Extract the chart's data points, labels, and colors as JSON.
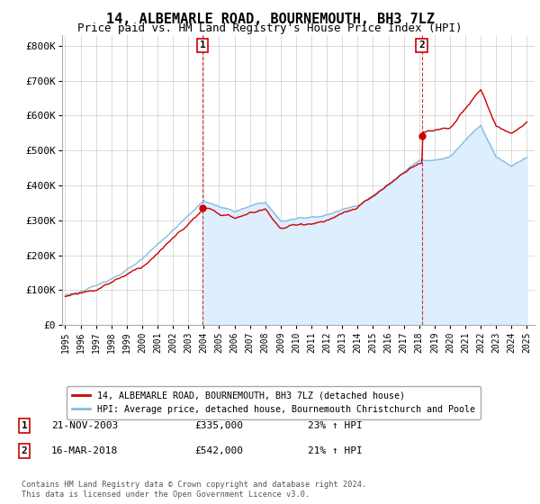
{
  "title": "14, ALBEMARLE ROAD, BOURNEMOUTH, BH3 7LZ",
  "subtitle": "Price paid vs. HM Land Registry's House Price Index (HPI)",
  "title_fontsize": 11,
  "subtitle_fontsize": 9,
  "ylabel_ticks": [
    "£0",
    "£100K",
    "£200K",
    "£300K",
    "£400K",
    "£500K",
    "£600K",
    "£700K",
    "£800K"
  ],
  "ytick_values": [
    0,
    100000,
    200000,
    300000,
    400000,
    500000,
    600000,
    700000,
    800000
  ],
  "ylim": [
    0,
    830000
  ],
  "xlim_start": 1994.8,
  "xlim_end": 2025.5,
  "xtick_years": [
    1995,
    1996,
    1997,
    1998,
    1999,
    2000,
    2001,
    2002,
    2003,
    2004,
    2005,
    2006,
    2007,
    2008,
    2009,
    2010,
    2011,
    2012,
    2013,
    2014,
    2015,
    2016,
    2017,
    2018,
    2019,
    2020,
    2021,
    2022,
    2023,
    2024,
    2025
  ],
  "sale1_x": 2003.9,
  "sale1_y": 335000,
  "sale2_x": 2018.2,
  "sale2_y": 542000,
  "sale_color": "#cc0000",
  "hpi_color": "#88bbdd",
  "hpi_fill_color": "#ddeeff",
  "annotation_box_color": "#cc0000",
  "background_color": "#ffffff",
  "grid_color": "#cccccc",
  "legend_label1": "14, ALBEMARLE ROAD, BOURNEMOUTH, BH3 7LZ (detached house)",
  "legend_label2": "HPI: Average price, detached house, Bournemouth Christchurch and Poole",
  "ann1_label": "1",
  "ann2_label": "2",
  "ann1_date": "21-NOV-2003",
  "ann1_price": "£335,000",
  "ann1_hpi": "23% ↑ HPI",
  "ann2_date": "16-MAR-2018",
  "ann2_price": "£542,000",
  "ann2_hpi": "21% ↑ HPI",
  "footer1": "Contains HM Land Registry data © Crown copyright and database right 2024.",
  "footer2": "This data is licensed under the Open Government Licence v3.0."
}
